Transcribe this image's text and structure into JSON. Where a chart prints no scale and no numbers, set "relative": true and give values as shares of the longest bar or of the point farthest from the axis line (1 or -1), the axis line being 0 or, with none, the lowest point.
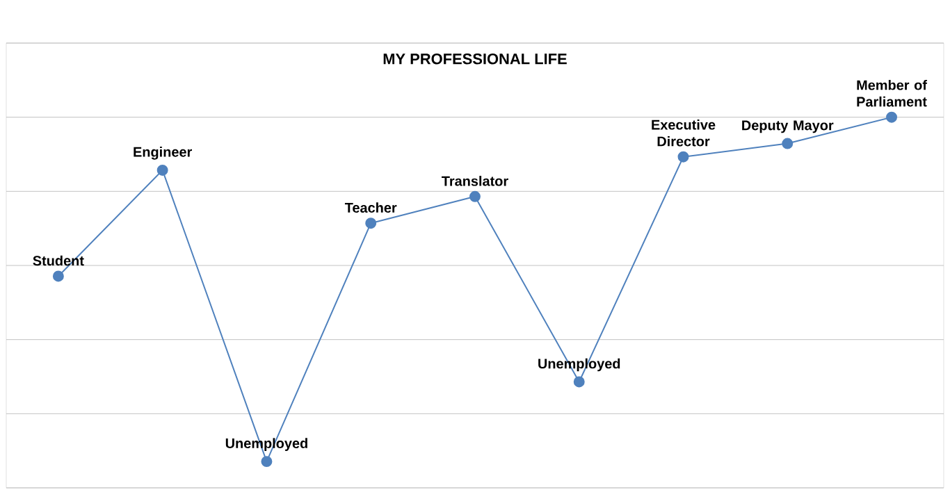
{
  "chart_data": {
    "type": "line",
    "title": "MY PROFESSIONAL LIFE",
    "relative": true,
    "grid": "y",
    "marker": "circle",
    "line_style": "solid",
    "categories": [
      null,
      null,
      null,
      null,
      null,
      null,
      null,
      null,
      null
    ],
    "series": [
      {
        "color": "#4f81bd",
        "values": [
          0.571,
          0.857,
          0.071,
          0.714,
          0.786,
          0.286,
          0.893,
          0.929,
          1.0
        ]
      }
    ],
    "annotations": [
      {
        "text": "Student",
        "y": 0.571
      },
      {
        "text": "Engineer",
        "y": 0.857
      },
      {
        "text": "Unemployed",
        "y": 0.071
      },
      {
        "text": "Teacher",
        "y": 0.714
      },
      {
        "text": "Translator",
        "y": 0.786
      },
      {
        "text": "Unemployed",
        "y": 0.286
      },
      {
        "text": "Executive Director",
        "y": 0.893
      },
      {
        "text": "Deputy Mayor",
        "y": 0.929
      },
      {
        "text": "Member of Parliament",
        "y": 1.0
      }
    ]
  }
}
